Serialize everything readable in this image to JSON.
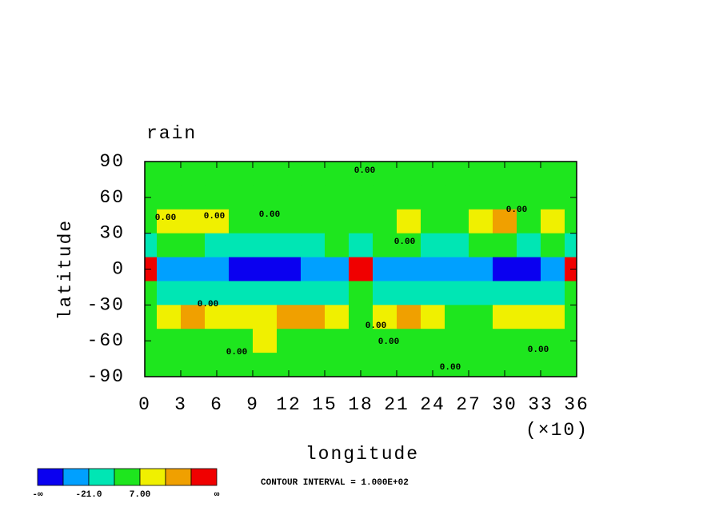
{
  "chart_data": {
    "type": "contour",
    "title": "rain",
    "x_label": "longitude",
    "y_label": "latitude",
    "x_scale_label": "(×10)",
    "x": [
      0,
      2,
      4,
      6,
      8,
      10,
      12,
      14,
      16,
      18,
      20,
      22,
      24,
      26,
      28,
      30,
      32,
      34,
      36
    ],
    "y": [
      80,
      60,
      40,
      20,
      0,
      -20,
      -40,
      -60,
      -80
    ],
    "z": [
      [
        2,
        1,
        0,
        1,
        2,
        3,
        1,
        0,
        2,
        1,
        3,
        2,
        0,
        1,
        2,
        1,
        0,
        2,
        2
      ],
      [
        3,
        2,
        4,
        1,
        0,
        3,
        2,
        1,
        4,
        2,
        1,
        3,
        2,
        4,
        1,
        3,
        5,
        2,
        3
      ],
      [
        5,
        12,
        18,
        10,
        3,
        2,
        4,
        3,
        5,
        2,
        3,
        14,
        6,
        2,
        15,
        22,
        4,
        10,
        5
      ],
      [
        -8,
        -4,
        3,
        -10,
        -12,
        -9,
        -14,
        -11,
        -6,
        -9,
        -5,
        -3,
        -8,
        -10,
        -4,
        -7,
        -12,
        -3,
        -8
      ],
      [
        80,
        -24,
        -30,
        -28,
        -38,
        -40,
        -36,
        -30,
        -26,
        90,
        -28,
        -32,
        -24,
        -30,
        -34,
        -36,
        -40,
        -30,
        80
      ],
      [
        -6,
        -12,
        -9,
        -15,
        -10,
        -8,
        -12,
        -14,
        -18,
        -5,
        -10,
        -9,
        -15,
        -12,
        -8,
        -11,
        -14,
        -10,
        -6
      ],
      [
        4,
        16,
        24,
        12,
        8,
        14,
        22,
        26,
        10,
        4,
        18,
        24,
        14,
        6,
        4,
        10,
        20,
        12,
        4
      ],
      [
        3,
        2,
        4,
        1,
        5,
        8,
        3,
        2,
        1,
        2,
        4,
        1,
        3,
        5,
        2,
        3,
        4,
        2,
        3
      ],
      [
        1,
        0,
        2,
        1,
        0,
        1,
        2,
        0,
        1,
        1,
        2,
        0,
        1,
        0,
        2,
        1,
        0,
        1,
        1
      ]
    ],
    "xlim": [
      0,
      36
    ],
    "xticks": [
      0,
      3,
      6,
      9,
      12,
      15,
      18,
      21,
      24,
      27,
      30,
      33,
      36
    ],
    "ylim": [
      -90,
      90
    ],
    "yticks": [
      -90,
      -60,
      -30,
      0,
      30,
      60,
      90
    ],
    "colorbar": {
      "colors": [
        "#0a00f0",
        "#00a0ff",
        "#00e6b4",
        "#1ee61e",
        "#f0f000",
        "#f0a000",
        "#f00000"
      ],
      "ticks": [
        {
          "value": -21,
          "label": "-21.0"
        },
        {
          "value": 7,
          "label": "7.00"
        }
      ],
      "end_labels": [
        "-∞",
        "∞"
      ]
    },
    "contour_labels": [
      "0.00",
      "0.00",
      "0.00",
      "0.00",
      "0.00",
      "0.00",
      "0.00",
      "0.00",
      "0.00",
      "0.00",
      "0.00",
      "0.00"
    ],
    "note": "CONTOUR INTERVAL = 1.000E+02"
  }
}
